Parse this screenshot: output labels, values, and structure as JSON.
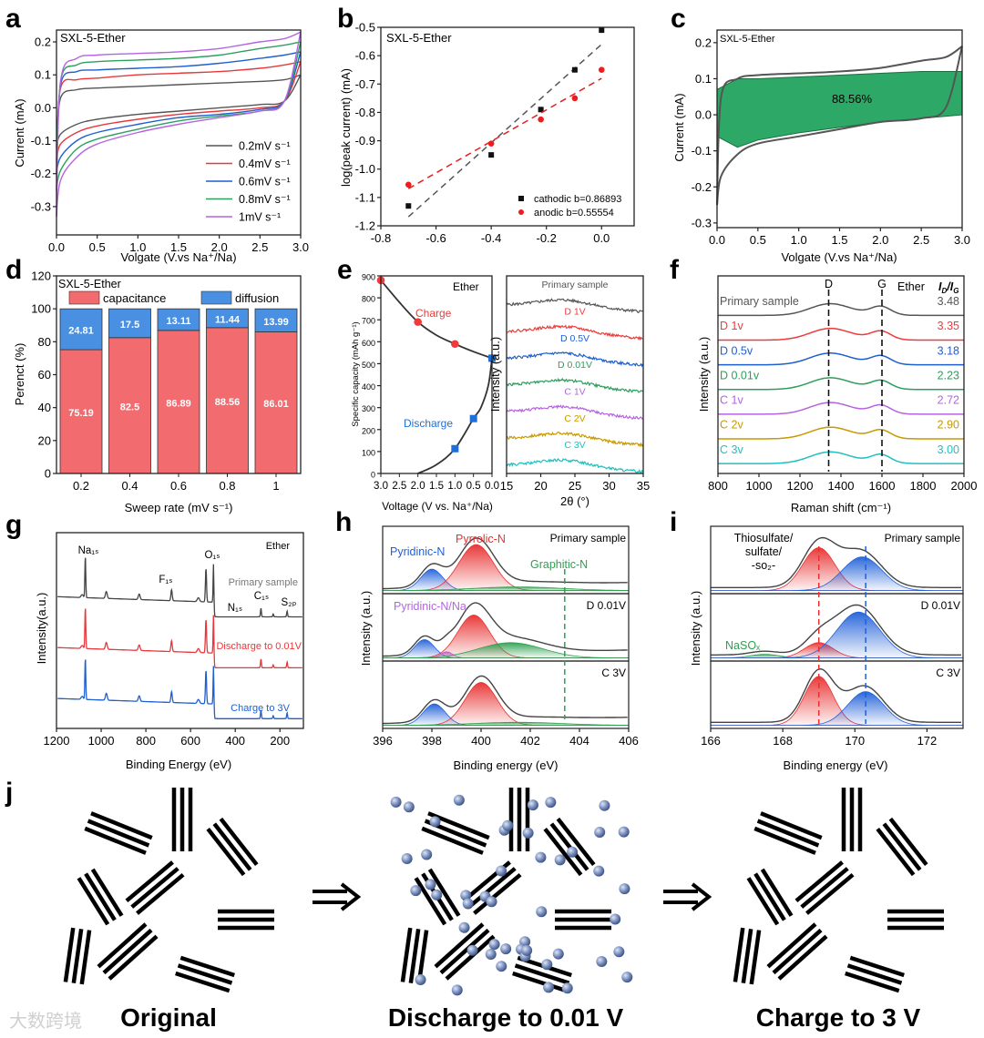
{
  "panel_letters": [
    "a",
    "b",
    "c",
    "d",
    "e",
    "f",
    "g",
    "h",
    "i",
    "j"
  ],
  "watermark": "大数跨境",
  "chart_data": [
    {
      "id": "a",
      "type": "line",
      "title": "SXL-5-Ether",
      "xlabel": "Volgate (V.vs Na⁺/Na)",
      "ylabel": "Current (mA)",
      "xlim": [
        0,
        3
      ],
      "ylim": [
        -0.386,
        0.236
      ],
      "xticks": [
        "0.0",
        "0.5",
        "1.0",
        "1.5",
        "2.0",
        "2.5",
        "3.0"
      ],
      "yticks": [
        "-0.3",
        "-0.2",
        "-0.1",
        "0.0",
        "0.1",
        "0.2"
      ],
      "x": [
        0,
        0.05,
        0.25,
        0.5,
        1,
        1.5,
        2,
        2.5,
        2.8,
        3
      ],
      "series": [
        {
          "name": "0.2mV s⁻¹",
          "color": "#555555",
          "upper": [
            -0.12,
            0.03,
            0.055,
            0.06,
            0.065,
            0.07,
            0.075,
            0.08,
            0.085,
            0.1
          ],
          "lower": [
            -0.12,
            -0.08,
            -0.05,
            -0.035,
            -0.02,
            -0.01,
            0.0,
            0.01,
            0.02,
            0.1
          ]
        },
        {
          "name": "0.4mV s⁻¹",
          "color": "#e8383b",
          "upper": [
            -0.16,
            0.06,
            0.085,
            0.09,
            0.1,
            0.105,
            0.11,
            0.12,
            0.13,
            0.14
          ],
          "lower": [
            -0.16,
            -0.11,
            -0.075,
            -0.055,
            -0.035,
            -0.02,
            -0.01,
            0.0,
            0.02,
            0.14
          ]
        },
        {
          "name": "0.6mV s⁻¹",
          "color": "#1f5fd0",
          "upper": [
            -0.2,
            0.07,
            0.11,
            0.115,
            0.12,
            0.125,
            0.135,
            0.15,
            0.16,
            0.17
          ],
          "lower": [
            -0.2,
            -0.15,
            -0.1,
            -0.075,
            -0.05,
            -0.03,
            -0.02,
            -0.005,
            0.02,
            0.17
          ]
        },
        {
          "name": "0.8mV s⁻¹",
          "color": "#2e9e5e",
          "upper": [
            -0.25,
            0.08,
            0.13,
            0.14,
            0.145,
            0.15,
            0.16,
            0.18,
            0.19,
            0.2
          ],
          "lower": [
            -0.25,
            -0.19,
            -0.125,
            -0.095,
            -0.065,
            -0.04,
            -0.025,
            -0.01,
            0.02,
            0.2
          ]
        },
        {
          "name": "1mV s⁻¹",
          "color": "#b464e0",
          "upper": [
            -0.33,
            0.08,
            0.15,
            0.16,
            0.165,
            0.17,
            0.18,
            0.2,
            0.21,
            0.23
          ],
          "lower": [
            -0.33,
            -0.22,
            -0.15,
            -0.11,
            -0.075,
            -0.05,
            -0.03,
            -0.01,
            0.02,
            0.23
          ]
        }
      ]
    },
    {
      "id": "b",
      "type": "scatter",
      "title": "SXL-5-Ether",
      "xlabel": "",
      "ylabel": "log(peak current) (mA)",
      "xlim": [
        -0.8,
        0.118
      ],
      "ylim": [
        -1.2,
        -0.5
      ],
      "xticks": [
        "-0.8",
        "-0.6",
        "-0.4",
        "-0.2",
        "0.0"
      ],
      "yticks": [
        "-1.2",
        "-1.1",
        "-1.0",
        "-0.9",
        "-0.8",
        "-0.7",
        "-0.6",
        "-0.5"
      ],
      "x": [
        -0.7,
        -0.4,
        -0.22,
        -0.097,
        0
      ],
      "series": [
        {
          "name": "cathodic",
          "label": "cathodic b=0.86893",
          "color": "#111111",
          "marker": "square",
          "y": [
            -1.13,
            -0.95,
            -0.79,
            -0.65,
            -0.51
          ],
          "fit_slope": 0.86893,
          "fit_intercept": -0.56,
          "fit_color": "#555555"
        },
        {
          "name": "anodic",
          "label": "anodic    b=0.55554",
          "color": "#ee1c1c",
          "marker": "circle",
          "y": [
            -1.055,
            -0.91,
            -0.825,
            -0.75,
            -0.65
          ],
          "fit_slope": 0.55554,
          "fit_intercept": -0.68,
          "fit_color": "#e02020"
        }
      ]
    },
    {
      "id": "c",
      "type": "area",
      "title": "SXL-5-Ether",
      "xlabel": "Volgate (V.vs Na⁺/Na)",
      "ylabel": "Current (mA)",
      "xlim": [
        0,
        3
      ],
      "ylim": [
        -0.313,
        0.235
      ],
      "xticks": [
        "0.0",
        "0.5",
        "1.0",
        "1.5",
        "2.0",
        "2.5",
        "3.0"
      ],
      "yticks": [
        "-0.3",
        "-0.2",
        "-0.1",
        "0.0",
        "0.1",
        "0.2"
      ],
      "annotation": "88.56%",
      "total": {
        "x": [
          0,
          0.05,
          0.25,
          0.5,
          1,
          1.5,
          2,
          2.5,
          2.8,
          3
        ],
        "upper": [
          -0.25,
          0.05,
          0.1,
          0.11,
          0.115,
          0.12,
          0.13,
          0.15,
          0.16,
          0.19
        ],
        "lower": [
          -0.25,
          -0.17,
          -0.11,
          -0.08,
          -0.06,
          -0.04,
          -0.02,
          -0.01,
          0.02,
          0.19
        ],
        "color": "#555555"
      },
      "capacitive": {
        "x": [
          0,
          0.25,
          0.5,
          1,
          1.5,
          2,
          2.5,
          3
        ],
        "upper": [
          0.07,
          0.1,
          0.1,
          0.105,
          0.11,
          0.115,
          0.12,
          0.12
        ],
        "lower": [
          -0.06,
          -0.09,
          -0.07,
          -0.05,
          -0.035,
          -0.02,
          -0.01,
          0.0
        ],
        "color": "#2ea866"
      }
    },
    {
      "id": "d",
      "type": "bar",
      "title": "SXL-5-Ether",
      "xlabel": "Sweep rate (mV s⁻¹)",
      "ylabel": "Perenct (%)",
      "ylim": [
        0,
        120
      ],
      "yticks": [
        "0",
        "20",
        "40",
        "60",
        "80",
        "100",
        "120"
      ],
      "categories": [
        "0.2",
        "0.4",
        "0.6",
        "0.8",
        "1"
      ],
      "series": [
        {
          "name": "capacitance",
          "color": "#f26b6f",
          "values": [
            75.19,
            82.5,
            86.89,
            88.56,
            86.01
          ],
          "labels": [
            "75.19",
            "82.5",
            "86.89",
            "88.56",
            "86.01"
          ]
        },
        {
          "name": "diffusion",
          "color": "#4a90e2",
          "values": [
            24.81,
            17.5,
            13.11,
            11.44,
            13.99
          ],
          "labels": [
            "24.81",
            "17.5",
            "13.11",
            "11.44",
            "13.99"
          ]
        }
      ]
    },
    {
      "id": "e-left",
      "type": "line",
      "title": "Ether",
      "xlabel": "Voltage (V vs. Na⁺/Na)",
      "ylabel": "Specific capacity (mAh g⁻¹)",
      "xlim": [
        3.0,
        0.0
      ],
      "ylim": [
        0,
        900
      ],
      "xticks": [
        "3.0",
        "2.5",
        "2.0",
        "1.5",
        "1.0",
        "0.5",
        "0.0"
      ],
      "yticks": [
        "0",
        "100",
        "200",
        "300",
        "400",
        "500",
        "600",
        "700",
        "800",
        "900"
      ],
      "series": [
        {
          "name": "Charge",
          "color": "#ee3b3b",
          "marker": "circle",
          "x": [
            3.0,
            2.0,
            1.0,
            0.0
          ],
          "y": [
            880,
            690,
            590,
            525
          ]
        },
        {
          "name": "Discharge",
          "color": "#1f6fd8",
          "marker": "square",
          "x": [
            1.0,
            0.5,
            0.0
          ],
          "y": [
            113,
            250,
            525
          ]
        }
      ],
      "curve": {
        "x": [
          3.0,
          2.5,
          2.0,
          1.5,
          1.0,
          0.5,
          0.0,
          0.1,
          0.3,
          0.5,
          1.0,
          1.5,
          2.0
        ],
        "y": [
          880,
          780,
          690,
          630,
          590,
          555,
          525,
          400,
          300,
          250,
          113,
          40,
          0
        ]
      }
    },
    {
      "id": "e-right",
      "type": "line",
      "xlabel": "2θ (°)",
      "ylabel": "Intensity (a.u.)",
      "xlim": [
        15,
        35
      ],
      "xticks": [
        "15",
        "20",
        "25",
        "30",
        "35"
      ],
      "series": [
        {
          "name": "Primary sample",
          "color": "#555555"
        },
        {
          "name": "D 1V",
          "color": "#ee3b3b"
        },
        {
          "name": "D 0.5V",
          "color": "#1f5fd0"
        },
        {
          "name": "D 0.01V",
          "color": "#2e9e5e"
        },
        {
          "name": "C 1V",
          "color": "#b464e0"
        },
        {
          "name": "C 2V",
          "color": "#c89a00"
        },
        {
          "name": "C 3V",
          "color": "#20c0c0"
        }
      ],
      "broad_peak_2theta": 23.5
    },
    {
      "id": "f",
      "type": "line",
      "xlabel": "Raman shift (cm⁻¹)",
      "ylabel": "Intensity (a.u.)",
      "xlim": [
        800,
        2000
      ],
      "xticks": [
        "800",
        "1000",
        "1200",
        "1400",
        "1600",
        "1800",
        "2000"
      ],
      "legend_title": "Ether",
      "ratio_label_parts": [
        "I",
        "D",
        "/I",
        "G"
      ],
      "D_band": {
        "label": "D",
        "position": 1340
      },
      "G_band": {
        "label": "G",
        "position": 1600
      },
      "series": [
        {
          "name": "Primary sample",
          "color": "#555555",
          "ratio": "3.48"
        },
        {
          "name": "D 1v",
          "color": "#ee3b3b",
          "ratio": "3.35"
        },
        {
          "name": "D 0.5v",
          "color": "#1f5fd0",
          "ratio": "3.18"
        },
        {
          "name": "D 0.01v",
          "color": "#2e9e5e",
          "ratio": "2.23"
        },
        {
          "name": "C 1v",
          "color": "#b464e0",
          "ratio": "2.72"
        },
        {
          "name": "C 2v",
          "color": "#c89a00",
          "ratio": "2.90"
        },
        {
          "name": "C 3v",
          "color": "#20c0c0",
          "ratio": "3.00"
        }
      ]
    },
    {
      "id": "g",
      "type": "line",
      "title": "Ether",
      "xlabel": "Binding Energy (eV)",
      "ylabel": "Intensity(a.u.)",
      "xlim": [
        1200,
        95
      ],
      "xticks": [
        "1200",
        "1000",
        "800",
        "600",
        "400",
        "200"
      ],
      "peaks": [
        {
          "label": "Na₁ₛ",
          "position": 1071
        },
        {
          "label": "F₁ₛ",
          "position": 685
        },
        {
          "label": "O₁ₛ",
          "position": 531
        },
        {
          "label": "N₁ₛ",
          "position": 400
        },
        {
          "label": "C₁ₛ",
          "position": 285
        },
        {
          "label": "S₂ₚ",
          "position": 168
        }
      ],
      "series": [
        {
          "name": "Primary sample",
          "color": "#444444"
        },
        {
          "name": "Discharge to 0.01V",
          "color": "#e8383b"
        },
        {
          "name": "Charge to 3V",
          "color": "#1f5fd0"
        }
      ]
    },
    {
      "id": "h",
      "type": "line",
      "xlabel": "Binding energy (eV)",
      "ylabel": "Intensity (a.u.)",
      "xlim": [
        396,
        406
      ],
      "xticks": [
        "396",
        "398",
        "400",
        "402",
        "404",
        "406"
      ],
      "reference_line": 403.4,
      "subpanels": [
        {
          "name": "Primary sample",
          "components": [
            {
              "label": "Pyridinic-N",
              "center": 398.0,
              "sigma": 0.45,
              "amp": 0.35,
              "color": "#2060d8"
            },
            {
              "label": "Pyrrolic-N",
              "center": 399.8,
              "sigma": 0.7,
              "amp": 0.75,
              "color": "#e83030"
            },
            {
              "label": "Graphitic-N",
              "center": 401.5,
              "sigma": 1.8,
              "amp": 0.06,
              "color": "#2ea050"
            }
          ]
        },
        {
          "name": "D 0.01V",
          "components": [
            {
              "label": "",
              "center": 397.7,
              "sigma": 0.4,
              "amp": 0.3,
              "color": "#2060d8"
            },
            {
              "label": "Pyridinic-N/Na",
              "center": 398.6,
              "sigma": 0.25,
              "amp": 0.1,
              "color": "#b464e0"
            },
            {
              "label": "",
              "center": 399.7,
              "sigma": 0.65,
              "amp": 0.7,
              "color": "#e83030"
            },
            {
              "label": "",
              "center": 401.2,
              "sigma": 1.3,
              "amp": 0.25,
              "color": "#2ea050"
            }
          ]
        },
        {
          "name": "C 3V",
          "components": [
            {
              "label": "",
              "center": 398.1,
              "sigma": 0.45,
              "amp": 0.35,
              "color": "#2060d8"
            },
            {
              "label": "",
              "center": 400.0,
              "sigma": 0.65,
              "amp": 0.7,
              "color": "#e83030"
            },
            {
              "label": "",
              "center": 401.5,
              "sigma": 1.8,
              "amp": 0.05,
              "color": "#2ea050"
            }
          ]
        }
      ]
    },
    {
      "id": "i",
      "type": "line",
      "xlabel": "Binding energy (eV)",
      "ylabel": "Intensity (a.u.)",
      "xlim": [
        166,
        173
      ],
      "xticks": [
        "166",
        "168",
        "170",
        "172"
      ],
      "reference_lines": [
        {
          "value": 169.0,
          "color": "#e83030"
        },
        {
          "value": 170.3,
          "color": "#2060d8"
        }
      ],
      "subpanels": [
        {
          "name": "Primary sample",
          "components": [
            {
              "label": "Thiosulfate/\nsulfate/\n-so₂-",
              "center": 169.0,
              "sigma": 0.45,
              "amp": 0.7,
              "color": "#e83030"
            },
            {
              "label": "",
              "center": 170.2,
              "sigma": 0.55,
              "amp": 0.55,
              "color": "#2060d8"
            }
          ]
        },
        {
          "name": "D 0.01V",
          "components": [
            {
              "label": "NaSOₓ",
              "center": 167.5,
              "sigma": 0.4,
              "amp": 0.06,
              "color": "#2ea050"
            },
            {
              "label": "",
              "center": 169.0,
              "sigma": 0.4,
              "amp": 0.25,
              "color": "#e83030"
            },
            {
              "label": "",
              "center": 170.1,
              "sigma": 0.6,
              "amp": 0.75,
              "color": "#2060d8"
            }
          ]
        },
        {
          "name": "C 3V",
          "components": [
            {
              "label": "",
              "center": 169.0,
              "sigma": 0.4,
              "amp": 0.8,
              "color": "#e83030"
            },
            {
              "label": "",
              "center": 170.3,
              "sigma": 0.5,
              "amp": 0.55,
              "color": "#2060d8"
            }
          ]
        }
      ]
    }
  ],
  "schematic": {
    "labels": [
      "Original",
      "Discharge to 0.01 V",
      "Charge to 3 V"
    ],
    "arrow_icon": "double-arrow-right",
    "sodium_color": "#6f86b8"
  }
}
